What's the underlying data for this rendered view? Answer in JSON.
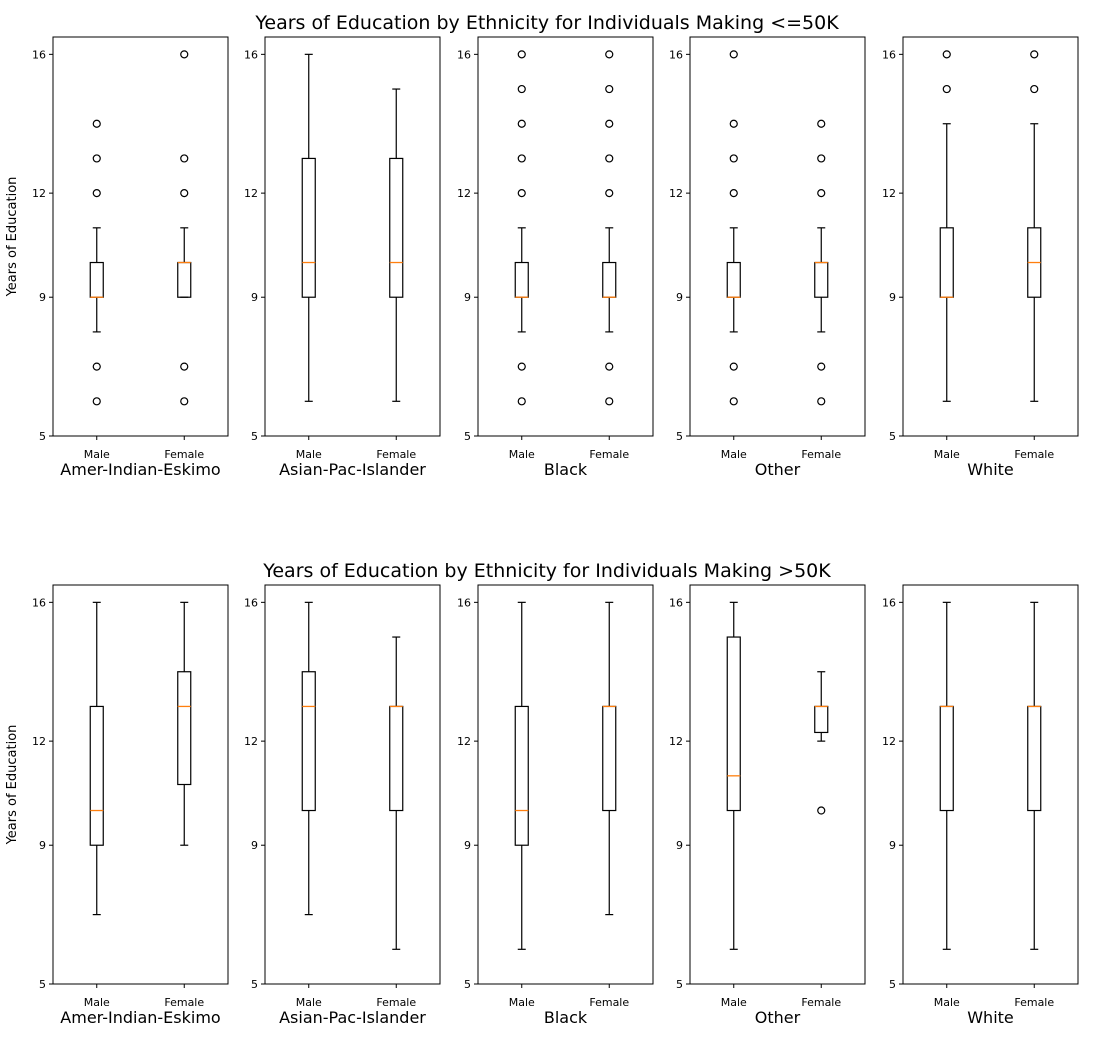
{
  "chart_data": [
    {
      "type": "boxplot",
      "title": "Years of Education by Ethnicity for Individuals Making <=50K",
      "ylabel": "Years of Education",
      "ylim": [
        5,
        16.5
      ],
      "yticks": [
        5,
        9,
        12,
        16
      ],
      "panels": [
        {
          "xlabel": "Amer-Indian-Eskimo",
          "boxes": [
            {
              "category": "Male",
              "whislo": 8,
              "q1": 9,
              "median": 9,
              "q3": 10,
              "whishi": 11,
              "fliers": [
                6,
                7,
                12,
                13,
                14
              ]
            },
            {
              "category": "Female",
              "whislo": 9,
              "q1": 9,
              "median": 10,
              "q3": 10,
              "whishi": 11,
              "fliers": [
                6,
                7,
                12,
                13,
                16
              ]
            }
          ]
        },
        {
          "xlabel": "Asian-Pac-Islander",
          "boxes": [
            {
              "category": "Male",
              "whislo": 6,
              "q1": 9,
              "median": 10,
              "q3": 13,
              "whishi": 16,
              "fliers": []
            },
            {
              "category": "Female",
              "whislo": 6,
              "q1": 9,
              "median": 10,
              "q3": 13,
              "whishi": 15,
              "fliers": []
            }
          ]
        },
        {
          "xlabel": "Black",
          "boxes": [
            {
              "category": "Male",
              "whislo": 8,
              "q1": 9,
              "median": 9,
              "q3": 10,
              "whishi": 11,
              "fliers": [
                6,
                7,
                12,
                13,
                14,
                15,
                16
              ]
            },
            {
              "category": "Female",
              "whislo": 8,
              "q1": 9,
              "median": 9,
              "q3": 10,
              "whishi": 11,
              "fliers": [
                6,
                7,
                12,
                13,
                14,
                15,
                16
              ]
            }
          ]
        },
        {
          "xlabel": "Other",
          "boxes": [
            {
              "category": "Male",
              "whislo": 8,
              "q1": 9,
              "median": 9,
              "q3": 10,
              "whishi": 11,
              "fliers": [
                6,
                7,
                12,
                13,
                14,
                16
              ]
            },
            {
              "category": "Female",
              "whislo": 8,
              "q1": 9,
              "median": 10,
              "q3": 10,
              "whishi": 11,
              "fliers": [
                6,
                7,
                12,
                13,
                14
              ]
            }
          ]
        },
        {
          "xlabel": "White",
          "boxes": [
            {
              "category": "Male",
              "whislo": 6,
              "q1": 9,
              "median": 9,
              "q3": 11,
              "whishi": 14,
              "fliers": [
                15,
                16
              ]
            },
            {
              "category": "Female",
              "whislo": 6,
              "q1": 9,
              "median": 10,
              "q3": 11,
              "whishi": 14,
              "fliers": [
                15,
                16
              ]
            }
          ]
        }
      ]
    },
    {
      "type": "boxplot",
      "title": "Years of Education by Ethnicity for Individuals Making >50K",
      "ylabel": "Years of Education",
      "ylim": [
        5,
        16.5
      ],
      "yticks": [
        5,
        9,
        12,
        16
      ],
      "panels": [
        {
          "xlabel": "Amer-Indian-Eskimo",
          "boxes": [
            {
              "category": "Male",
              "whislo": 7,
              "q1": 9,
              "median": 10,
              "q3": 13,
              "whishi": 16,
              "fliers": []
            },
            {
              "category": "Female",
              "whislo": 9,
              "q1": 10.75,
              "median": 13,
              "q3": 14,
              "whishi": 16,
              "fliers": []
            }
          ]
        },
        {
          "xlabel": "Asian-Pac-Islander",
          "boxes": [
            {
              "category": "Male",
              "whislo": 7,
              "q1": 10,
              "median": 13,
              "q3": 14,
              "whishi": 16,
              "fliers": []
            },
            {
              "category": "Female",
              "whislo": 6,
              "q1": 10,
              "median": 13,
              "q3": 13,
              "whishi": 15,
              "fliers": []
            }
          ]
        },
        {
          "xlabel": "Black",
          "boxes": [
            {
              "category": "Male",
              "whislo": 6,
              "q1": 9,
              "median": 10,
              "q3": 13,
              "whishi": 16,
              "fliers": []
            },
            {
              "category": "Female",
              "whislo": 7,
              "q1": 10,
              "median": 13,
              "q3": 13,
              "whishi": 16,
              "fliers": []
            }
          ]
        },
        {
          "xlabel": "Other",
          "boxes": [
            {
              "category": "Male",
              "whislo": 6,
              "q1": 10,
              "median": 11,
              "q3": 15,
              "whishi": 16,
              "fliers": []
            },
            {
              "category": "Female",
              "whislo": 12,
              "q1": 12.25,
              "median": 13,
              "q3": 13,
              "whishi": 14,
              "fliers": [
                10
              ]
            }
          ]
        },
        {
          "xlabel": "White",
          "boxes": [
            {
              "category": "Male",
              "whislo": 6,
              "q1": 10,
              "median": 13,
              "q3": 13,
              "whishi": 16,
              "fliers": []
            },
            {
              "category": "Female",
              "whislo": 6,
              "q1": 10,
              "median": 13,
              "q3": 13,
              "whishi": 16,
              "fliers": []
            }
          ]
        }
      ]
    }
  ],
  "colors": {
    "median": "#ff7f0e",
    "box": "#000000",
    "background": "#ffffff"
  }
}
